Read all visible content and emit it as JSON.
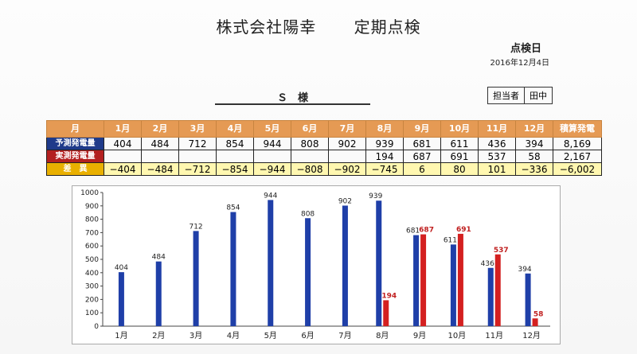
{
  "header": {
    "company_title": "株式会社陽幸",
    "report_title": "定期点検",
    "inspection_date_label": "点検日",
    "inspection_date": "2016年12月4日",
    "client_name": "Ｓ　様",
    "assignee_label": "担当者",
    "assignee_name": "田中"
  },
  "table": {
    "columns": [
      "月",
      "1月",
      "2月",
      "3月",
      "4月",
      "5月",
      "6月",
      "7月",
      "8月",
      "9月",
      "10月",
      "11月",
      "12月",
      "積算発電"
    ],
    "rows": [
      {
        "label": "予測発電量",
        "values": [
          "404",
          "484",
          "712",
          "854",
          "944",
          "808",
          "902",
          "939",
          "681",
          "611",
          "436",
          "394",
          "8,169"
        ]
      },
      {
        "label": "実測発電量",
        "values": [
          "",
          "",
          "",
          "",
          "",
          "",
          "",
          "194",
          "687",
          "691",
          "537",
          "58",
          "2,167"
        ]
      },
      {
        "label": "差　異",
        "values": [
          "−404",
          "−484",
          "−712",
          "−854",
          "−944",
          "−808",
          "−902",
          "−745",
          "6",
          "80",
          "101",
          "−336",
          "−6,002"
        ]
      }
    ]
  },
  "chart_data": {
    "type": "bar",
    "categories": [
      "1月",
      "2月",
      "3月",
      "4月",
      "5月",
      "6月",
      "7月",
      "8月",
      "9月",
      "10月",
      "11月",
      "12月"
    ],
    "series": [
      {
        "values": [
          404,
          484,
          712,
          854,
          944,
          808,
          902,
          939,
          681,
          611,
          436,
          394
        ],
        "color": "#1f3fa8"
      },
      {
        "values": [
          null,
          null,
          null,
          null,
          null,
          null,
          null,
          194,
          687,
          691,
          537,
          58
        ],
        "color": "#d42020"
      }
    ],
    "yticks": [
      0,
      100,
      200,
      300,
      400,
      500,
      600,
      700,
      800,
      900,
      1000
    ],
    "ylim": [
      0,
      1000
    ],
    "grid": false
  }
}
